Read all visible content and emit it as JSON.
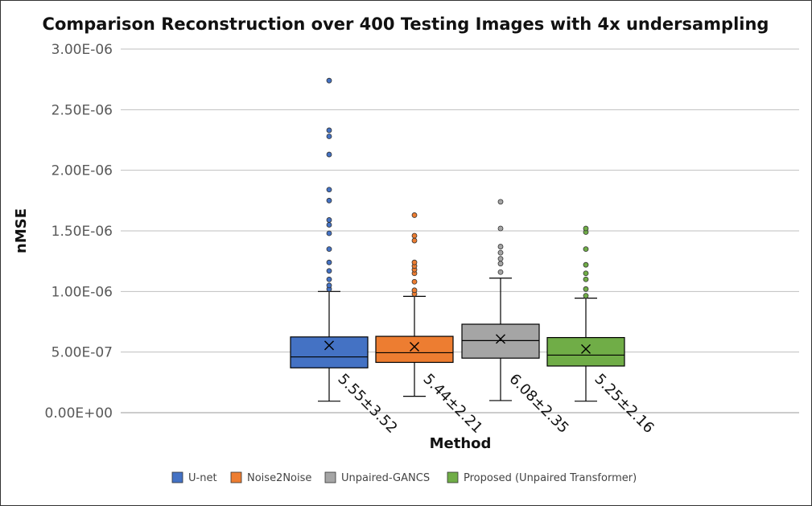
{
  "chart_data": {
    "type": "boxplot",
    "title": "Comparison Reconstruction over 400 Testing Images with 4x undersampling",
    "xlabel": "Method",
    "ylabel": "nMSE",
    "ylim": [
      0,
      3e-06
    ],
    "ytick_values": [
      0,
      5e-07,
      1e-06,
      1.5e-06,
      2e-06,
      2.5e-06,
      3e-06
    ],
    "ytick_labels": [
      "0.00E+00",
      "5.00E-07",
      "1.00E-06",
      "1.50E-06",
      "2.00E-06",
      "2.50E-06",
      "3.00E-06"
    ],
    "grid": true,
    "legend_position": "bottom",
    "series": [
      {
        "name": "U-net",
        "color": "#4472C4",
        "min": 9.5e-08,
        "q1": 3.7e-07,
        "median": 4.6e-07,
        "q3": 6.25e-07,
        "max": 1e-06,
        "mean": 5.55e-07,
        "annotation": "5.55±3.52",
        "outliers": [
          1.02e-06,
          1.05e-06,
          1.1e-06,
          1.17e-06,
          1.24e-06,
          1.35e-06,
          1.48e-06,
          1.55e-06,
          1.59e-06,
          1.75e-06,
          1.84e-06,
          2.13e-06,
          2.28e-06,
          2.33e-06,
          2.74e-06
        ]
      },
      {
        "name": "Noise2Noise",
        "color": "#ED7D31",
        "min": 1.35e-07,
        "q1": 4.15e-07,
        "median": 4.95e-07,
        "q3": 6.3e-07,
        "max": 9.6e-07,
        "mean": 5.44e-07,
        "annotation": "5.44±2.21",
        "outliers": [
          9.8e-07,
          1.01e-06,
          1.08e-06,
          1.15e-06,
          1.18e-06,
          1.21e-06,
          1.24e-06,
          1.42e-06,
          1.46e-06,
          1.63e-06
        ]
      },
      {
        "name": "Unpaired-GANCS",
        "color": "#A5A5A5",
        "min": 1e-07,
        "q1": 4.5e-07,
        "median": 5.95e-07,
        "q3": 7.3e-07,
        "max": 1.11e-06,
        "mean": 6.08e-07,
        "annotation": "6.08±2.35",
        "outliers": [
          1.16e-06,
          1.23e-06,
          1.27e-06,
          1.32e-06,
          1.37e-06,
          1.52e-06,
          1.74e-06
        ]
      },
      {
        "name": "Proposed (Unpaired Transformer)",
        "color": "#70AD47",
        "min": 9.5e-08,
        "q1": 3.85e-07,
        "median": 4.75e-07,
        "q3": 6.2e-07,
        "max": 9.45e-07,
        "mean": 5.25e-07,
        "annotation": "5.25±2.16",
        "outliers": [
          9.65e-07,
          1.02e-06,
          1.1e-06,
          1.15e-06,
          1.22e-06,
          1.35e-06,
          1.49e-06,
          1.52e-06
        ]
      }
    ]
  }
}
